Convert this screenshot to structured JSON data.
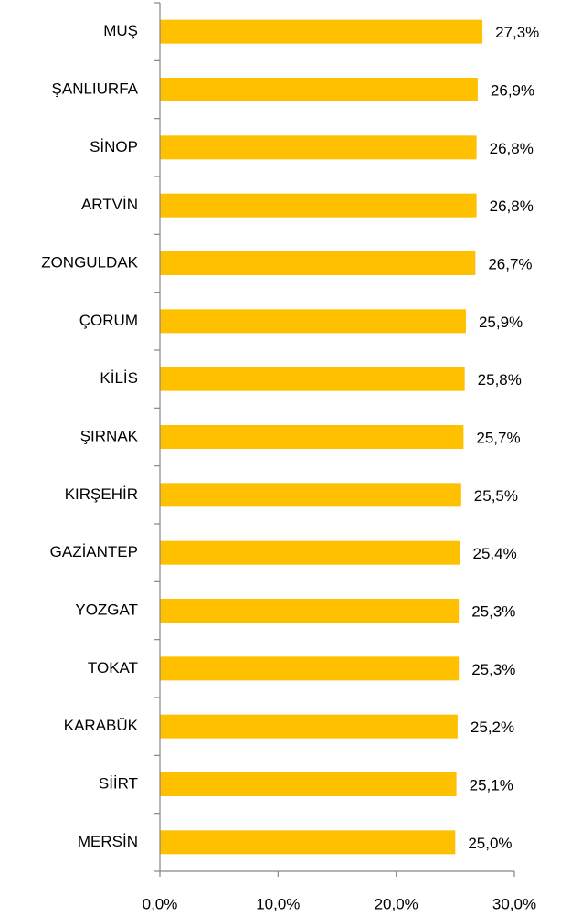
{
  "chart_data": {
    "type": "bar",
    "orientation": "horizontal",
    "categories": [
      "MUŞ",
      "ŞANLIURFA",
      "SİNOP",
      "ARTVİN",
      "ZONGULDAK",
      "ÇORUM",
      "KİLİS",
      "ŞIRNAK",
      "KIRŞEHİR",
      "GAZİANTEP",
      "YOZGAT",
      "TOKAT",
      "KARABÜK",
      "SİİRT",
      "MERSİN"
    ],
    "values": [
      27.3,
      26.9,
      26.8,
      26.8,
      26.7,
      25.9,
      25.8,
      25.7,
      25.5,
      25.4,
      25.3,
      25.3,
      25.2,
      25.1,
      25.0
    ],
    "value_labels": [
      "27,3%",
      "26,9%",
      "26,8%",
      "26,8%",
      "26,7%",
      "25,9%",
      "25,8%",
      "25,7%",
      "25,5%",
      "25,4%",
      "25,3%",
      "25,3%",
      "25,2%",
      "25,1%",
      "25,0%"
    ],
    "color": "#FFC000",
    "xlim": [
      0,
      30
    ],
    "xticks": [
      {
        "value": 0,
        "label": "0,0%"
      },
      {
        "value": 10,
        "label": "10,0%"
      },
      {
        "value": 20,
        "label": "20,0%"
      },
      {
        "value": 30,
        "label": "30,0%"
      }
    ],
    "grid": false
  }
}
